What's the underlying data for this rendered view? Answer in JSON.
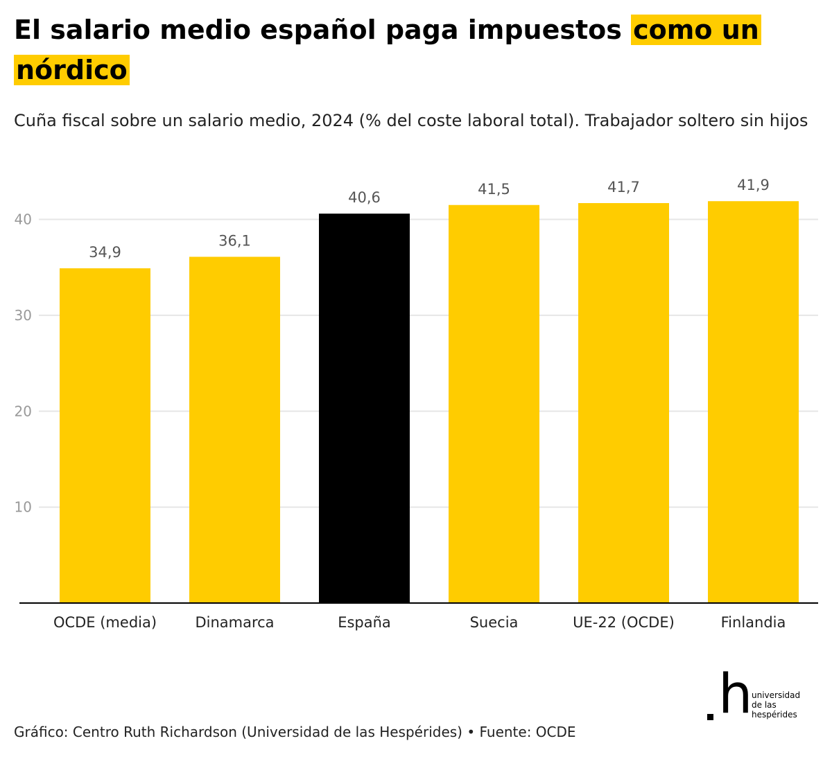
{
  "header": {
    "title_main": "El salario medio español paga impuestos",
    "title_highlight": "como un nórdico",
    "subtitle": "Cuña fiscal sobre un salario medio, 2024 (% del coste laboral total). Trabajador soltero sin hijos"
  },
  "chart_data": {
    "type": "bar",
    "categories": [
      "OCDE (media)",
      "Dinamarca",
      "España",
      "Suecia",
      "UE-22 (OCDE)",
      "Finlandia"
    ],
    "values": [
      34.9,
      36.1,
      40.6,
      41.5,
      41.7,
      41.9
    ],
    "data_labels": [
      "34,9",
      "36,1",
      "40,6",
      "41,5",
      "41,7",
      "41,9"
    ],
    "highlight_index": 2,
    "ylim": [
      0,
      43
    ],
    "yticks": [
      10,
      20,
      30,
      40
    ],
    "ytick_labels": [
      "10",
      "20",
      "30",
      "40"
    ],
    "grid": true,
    "colors": {
      "bar": "#ffcc00",
      "highlight_bar": "#000000",
      "grid": "#e6e6e6",
      "axis": "#000000",
      "tick_label": "#999999",
      "data_label": "#555555",
      "category_label": "#222222"
    }
  },
  "footer": {
    "source": "Gráfico: Centro Ruth Richardson (Universidad de las Hespérides) • Fuente: OCDE"
  },
  "logo": {
    "mark": ".h",
    "glyph": "h",
    "lines": [
      "universidad",
      "de las",
      "hespérides"
    ]
  }
}
